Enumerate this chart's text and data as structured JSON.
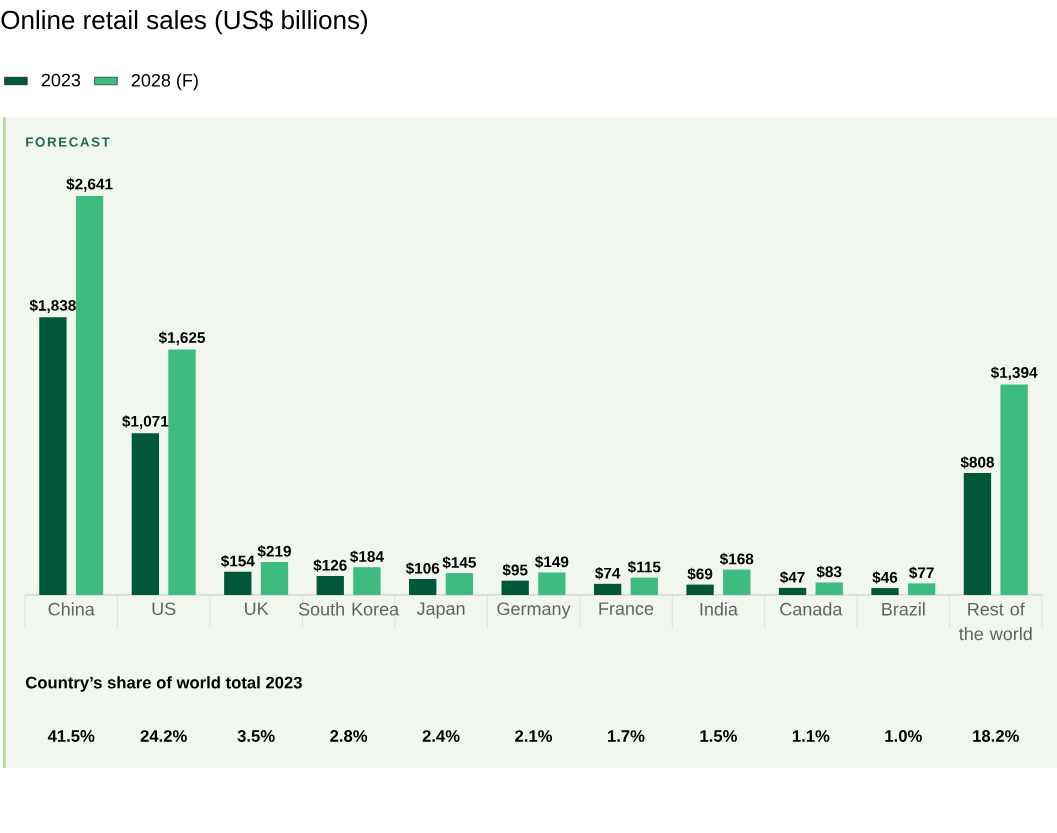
{
  "chart_data": {
    "type": "bar",
    "title": "Online retail sales (US$ billions)",
    "categories": [
      "China",
      "US",
      "UK",
      "South Korea",
      "Japan",
      "Germany",
      "France",
      "India",
      "Canada",
      "Brazil",
      "Rest of the world"
    ],
    "series": [
      {
        "name": "2023",
        "color": "#00573a",
        "values": [
          1838,
          1071,
          154,
          126,
          106,
          95,
          74,
          69,
          47,
          46,
          808
        ],
        "value_labels": [
          "$1,838",
          "$1,071",
          "$154",
          "$126",
          "$106",
          "$95",
          "$74",
          "$69",
          "$47",
          "$46",
          "$808"
        ]
      },
      {
        "name": "2028 (F)",
        "color": "#3dbb80",
        "values": [
          2641,
          1625,
          219,
          184,
          145,
          149,
          115,
          168,
          83,
          77,
          1394
        ],
        "value_labels": [
          "$2,641",
          "$1,625",
          "$219",
          "$184",
          "$145",
          "$149",
          "$115",
          "$168",
          "$83",
          "$77",
          "$1,394"
        ]
      }
    ],
    "legend": "top left",
    "annotations": [
      "FORECAST",
      "Country’s share of world total 2023",
      "41.5%",
      "24.2%",
      "3.5%",
      "2.8%",
      "2.4%",
      "2.1%",
      "1.7%",
      "1.5%",
      "1.1%",
      "1.0%",
      "18.2%"
    ]
  }
}
